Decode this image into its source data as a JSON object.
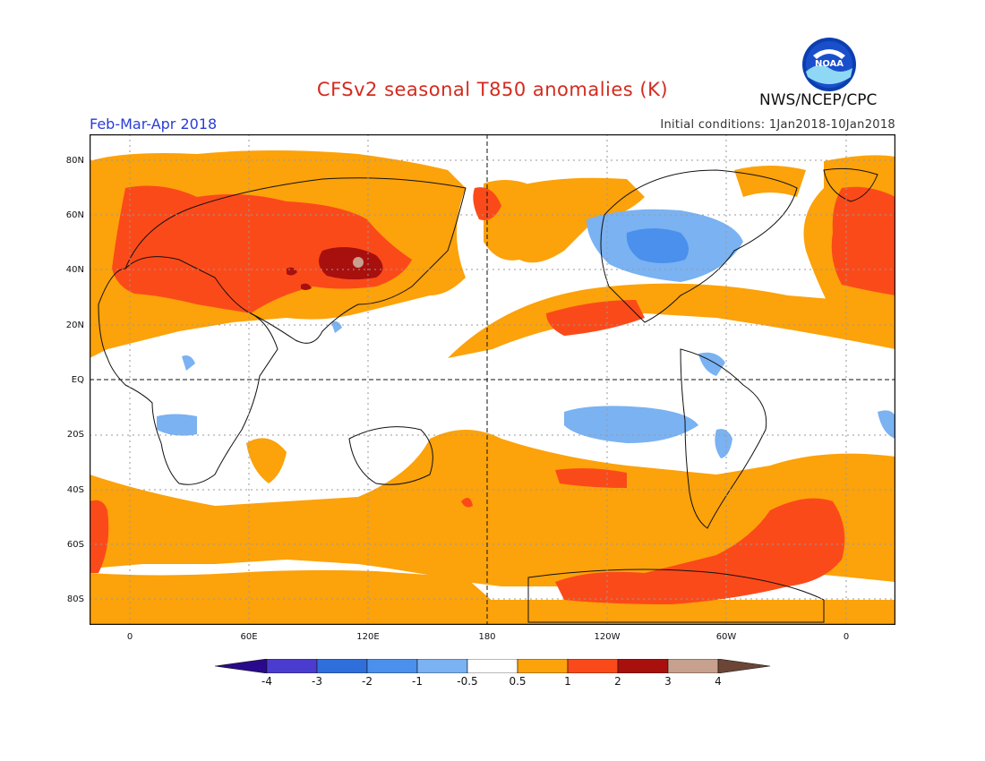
{
  "title": "CFSv2 seasonal T850 anomalies (K)",
  "period": "Feb-Mar-Apr 2018",
  "agency": "NWS/NCEP/CPC",
  "initial_conditions": "Initial conditions: 1Jan2018-10Jan2018",
  "logo": {
    "text": "NOAA",
    "icon": "noaa-logo"
  },
  "lat_labels": [
    "80N",
    "60N",
    "40N",
    "20N",
    "EQ",
    "20S",
    "40S",
    "60S",
    "80S"
  ],
  "lon_labels": [
    "0",
    "60E",
    "120E",
    "180",
    "120W",
    "60W",
    "0"
  ],
  "colorbar": {
    "labels": [
      "-4",
      "-3",
      "-2",
      "-1",
      "-0.5",
      "0.5",
      "1",
      "2",
      "3",
      "4"
    ],
    "colors": [
      "#2a0a8c",
      "#4b3cd0",
      "#2f6fdc",
      "#4a90ec",
      "#7ab2f2",
      "#ffffff",
      "#fca20a",
      "#fb4a1a",
      "#a8100e",
      "#c8a08e",
      "#6b4536"
    ]
  }
}
